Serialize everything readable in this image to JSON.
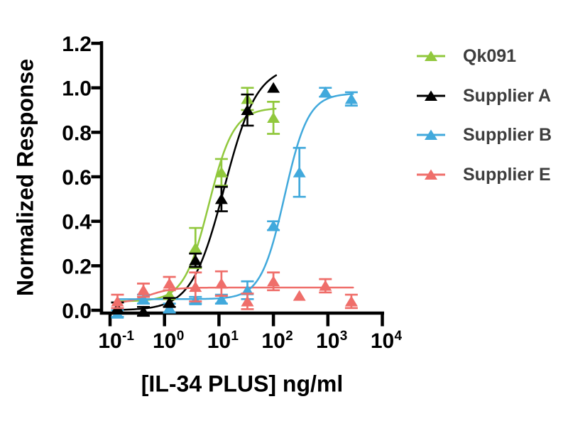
{
  "chart_data": {
    "type": "scatter",
    "title": "",
    "xlabel": "[IL-34 PLUS] ng/ml",
    "ylabel": "Normalized Response",
    "x_scale": "log",
    "xlim_exponents": [
      -1,
      4
    ],
    "ylim": [
      0,
      1.2
    ],
    "grid": false,
    "y_ticks": [
      0.0,
      0.2,
      0.4,
      0.6,
      0.8,
      1.0,
      1.2
    ],
    "y_tick_labels": [
      "0.0",
      "0.2",
      "0.4",
      "0.6",
      "0.8",
      "1.0",
      "1.2"
    ],
    "x_tick_base": "10",
    "x_tick_exponents": [
      -1,
      0,
      1,
      2,
      3,
      4
    ],
    "x_tick_exponent_labels": [
      "-1",
      "0",
      "1",
      "2",
      "3",
      "4"
    ],
    "legend_position": "right",
    "axis_color": "#000000",
    "series": [
      {
        "name": "Qk091",
        "color": "#91C83D",
        "marker": "triangle-up",
        "x": [
          1.23,
          3.7,
          11.1,
          33.3,
          100
        ],
        "y": [
          0.07,
          0.28,
          0.62,
          0.95,
          0.865
        ],
        "err": [
          0.02,
          0.09,
          0.06,
          0.05,
          0.072
        ],
        "fit": {
          "model": "4PL",
          "bottom": 0.04,
          "top": 0.91,
          "ec50": 6.5,
          "hill": 1.9,
          "x_range": [
            0.137,
            110
          ]
        }
      },
      {
        "name": "Supplier A",
        "color": "#000000",
        "marker": "triangle-up",
        "x": [
          0.137,
          0.41,
          1.23,
          3.7,
          11.1,
          33.3,
          100
        ],
        "y": [
          0.01,
          -0.005,
          0.035,
          0.225,
          0.5,
          0.9,
          1.0
        ],
        "err": [
          0.025,
          0.02,
          0.02,
          0.03,
          0.055,
          0.07,
          0
        ],
        "fit": {
          "model": "4PL",
          "bottom": 0.0,
          "top": 1.1,
          "ec50": 12.5,
          "hill": 1.45,
          "x_range": [
            0.137,
            112
          ]
        }
      },
      {
        "name": "Supplier B",
        "color": "#41A9DC",
        "marker": "triangle-up",
        "x": [
          0.137,
          0.41,
          1.23,
          3.7,
          11.1,
          33.3,
          100,
          300,
          900,
          2700
        ],
        "y": [
          -0.015,
          0.05,
          0.01,
          0.045,
          0.05,
          0.09,
          0.38,
          0.62,
          0.98,
          0.95
        ],
        "err": [
          0.015,
          0.02,
          0.02,
          0.015,
          0.02,
          0.04,
          0.02,
          0.11,
          0.02,
          0.03
        ],
        "fit": {
          "model": "4PL",
          "bottom": 0.05,
          "top": 0.975,
          "ec50": 160,
          "hill": 2.0,
          "x_range": [
            0.137,
            2900
          ]
        }
      },
      {
        "name": "Supplier E",
        "color": "#EF6E6A",
        "marker": "triangle-up",
        "x": [
          0.137,
          0.41,
          1.23,
          3.7,
          11.1,
          33.3,
          100,
          300,
          900,
          2700
        ],
        "y": [
          0.04,
          0.09,
          0.12,
          0.105,
          0.12,
          0.04,
          0.13,
          0.065,
          0.11,
          0.04
        ],
        "err": [
          0.03,
          0.03,
          0.03,
          0.065,
          0.055,
          0.035,
          0.04,
          0,
          0.03,
          0.03
        ],
        "fit": {
          "model": "4PL",
          "bottom": 0.03,
          "top": 0.102,
          "ec50": 0.5,
          "hill": 2.0,
          "x_range": [
            0.137,
            2900
          ]
        }
      }
    ]
  }
}
